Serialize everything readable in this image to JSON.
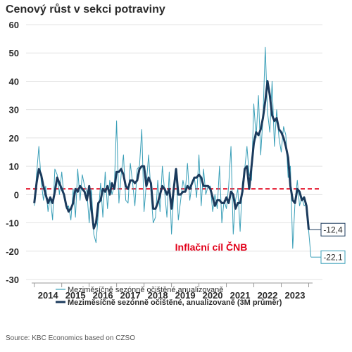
{
  "title": "Cenový růst v sekci potraviny",
  "source": "Source: KBC Economics based on CZSO",
  "chart_data": {
    "type": "line",
    "ylim": [
      -30,
      60
    ],
    "yticks": [
      -30,
      -20,
      -10,
      0,
      10,
      20,
      30,
      40,
      50,
      60
    ],
    "xlim": [
      2013.2,
      2024.0
    ],
    "year_labels": [
      "2014",
      "2015",
      "2016",
      "2017",
      "2018",
      "2019",
      "2020",
      "2021",
      "2022",
      "2023"
    ],
    "year_label_positions": [
      2014.0,
      2015.0,
      2016.0,
      2017.0,
      2018.0,
      2019.0,
      2020.0,
      2021.0,
      2022.0,
      2023.0
    ],
    "grid": true,
    "reference_line": {
      "label": "Inflační cíl ČNB",
      "value": 2,
      "color": "#e2001a"
    },
    "series": [
      {
        "name": "Meziměsíčně sezónně očištěné,anualizovaně",
        "color": "#3a9fb8",
        "points": [
          [
            2013.5,
            -4
          ],
          [
            2013.583,
            7
          ],
          [
            2013.667,
            17
          ],
          [
            2013.75,
            5
          ],
          [
            2013.833,
            -2
          ],
          [
            2013.917,
            3
          ],
          [
            2014.0,
            -6
          ],
          [
            2014.083,
            -1
          ],
          [
            2014.167,
            -9
          ],
          [
            2014.25,
            9
          ],
          [
            2014.333,
            7
          ],
          [
            2014.417,
            0
          ],
          [
            2014.5,
            8
          ],
          [
            2014.583,
            -1
          ],
          [
            2014.667,
            -5
          ],
          [
            2014.75,
            -4
          ],
          [
            2014.833,
            -9
          ],
          [
            2014.917,
            2
          ],
          [
            2015.0,
            -8
          ],
          [
            2015.083,
            9
          ],
          [
            2015.167,
            -2
          ],
          [
            2015.25,
            7
          ],
          [
            2015.333,
            3
          ],
          [
            2015.417,
            1
          ],
          [
            2015.5,
            -10
          ],
          [
            2015.583,
            2
          ],
          [
            2015.667,
            -14
          ],
          [
            2015.75,
            -17
          ],
          [
            2015.833,
            -7
          ],
          [
            2015.917,
            4
          ],
          [
            2016.0,
            -8
          ],
          [
            2016.083,
            8
          ],
          [
            2016.167,
            -5
          ],
          [
            2016.25,
            5
          ],
          [
            2016.333,
            0
          ],
          [
            2016.417,
            3
          ],
          [
            2016.5,
            26
          ],
          [
            2016.583,
            -3
          ],
          [
            2016.667,
            7
          ],
          [
            2016.75,
            14
          ],
          [
            2016.833,
            -2
          ],
          [
            2016.917,
            -3
          ],
          [
            2017.0,
            11
          ],
          [
            2017.083,
            4
          ],
          [
            2017.167,
            -4
          ],
          [
            2017.25,
            9
          ],
          [
            2017.333,
            10
          ],
          [
            2017.417,
            23
          ],
          [
            2017.5,
            -6
          ],
          [
            2017.583,
            4
          ],
          [
            2017.667,
            14
          ],
          [
            2017.75,
            1
          ],
          [
            2017.833,
            -10
          ],
          [
            2017.917,
            -8
          ],
          [
            2018.0,
            5
          ],
          [
            2018.083,
            -6
          ],
          [
            2018.167,
            10
          ],
          [
            2018.25,
            1
          ],
          [
            2018.333,
            -8
          ],
          [
            2018.417,
            8
          ],
          [
            2018.5,
            -14
          ],
          [
            2018.583,
            0
          ],
          [
            2018.667,
            8
          ],
          [
            2018.75,
            -9
          ],
          [
            2018.833,
            -2
          ],
          [
            2018.917,
            5
          ],
          [
            2019.0,
            1
          ],
          [
            2019.083,
            11
          ],
          [
            2019.167,
            -2
          ],
          [
            2019.25,
            4
          ],
          [
            2019.333,
            6
          ],
          [
            2019.417,
            -1
          ],
          [
            2019.5,
            14
          ],
          [
            2019.583,
            -4
          ],
          [
            2019.667,
            9
          ],
          [
            2019.75,
            0
          ],
          [
            2019.833,
            3
          ],
          [
            2019.917,
            3
          ],
          [
            2020.0,
            -6
          ],
          [
            2020.083,
            0
          ],
          [
            2020.167,
            -5
          ],
          [
            2020.25,
            10
          ],
          [
            2020.333,
            -10
          ],
          [
            2020.417,
            -2
          ],
          [
            2020.5,
            -5
          ],
          [
            2020.583,
            3
          ],
          [
            2020.667,
            17
          ],
          [
            2020.75,
            -14
          ],
          [
            2020.833,
            -2
          ],
          [
            2020.917,
            2
          ],
          [
            2021.0,
            -13
          ],
          [
            2021.083,
            4
          ],
          [
            2021.167,
            9
          ],
          [
            2021.25,
            17
          ],
          [
            2021.333,
            7
          ],
          [
            2021.417,
            5
          ],
          [
            2021.5,
            32
          ],
          [
            2021.583,
            20
          ],
          [
            2021.667,
            35
          ],
          [
            2021.75,
            14
          ],
          [
            2021.833,
            27
          ],
          [
            2021.917,
            52
          ],
          [
            2022.0,
            29
          ],
          [
            2022.083,
            22
          ],
          [
            2022.167,
            40
          ],
          [
            2022.25,
            17
          ],
          [
            2022.333,
            30
          ],
          [
            2022.417,
            20
          ],
          [
            2022.5,
            15
          ],
          [
            2022.583,
            24
          ],
          [
            2022.667,
            21
          ],
          [
            2022.75,
            6
          ],
          [
            2022.833,
            10
          ],
          [
            2022.917,
            -19
          ],
          [
            2023.0,
            -3
          ],
          [
            2023.083,
            5
          ],
          [
            2023.167,
            -4
          ],
          [
            2023.25,
            -1
          ],
          [
            2023.333,
            -4
          ],
          [
            2023.417,
            -3
          ],
          [
            2023.5,
            -13
          ],
          [
            2023.583,
            -22.1
          ]
        ]
      },
      {
        "name": "Meziměsíčně sezónně očištěné, anualizovaně (3M průměr)",
        "color": "#1b3a5c",
        "points": [
          [
            2013.5,
            -3
          ],
          [
            2013.583,
            4
          ],
          [
            2013.667,
            9
          ],
          [
            2013.75,
            7
          ],
          [
            2013.833,
            3
          ],
          [
            2013.917,
            0
          ],
          [
            2014.0,
            -3
          ],
          [
            2014.083,
            -1
          ],
          [
            2014.167,
            -3
          ],
          [
            2014.25,
            1
          ],
          [
            2014.333,
            6
          ],
          [
            2014.417,
            4
          ],
          [
            2014.5,
            2
          ],
          [
            2014.583,
            0
          ],
          [
            2014.667,
            -4
          ],
          [
            2014.75,
            -6
          ],
          [
            2014.833,
            -5
          ],
          [
            2014.917,
            -3
          ],
          [
            2015.0,
            2
          ],
          [
            2015.083,
            1
          ],
          [
            2015.167,
            3
          ],
          [
            2015.25,
            2
          ],
          [
            2015.333,
            1
          ],
          [
            2015.417,
            -2
          ],
          [
            2015.5,
            3
          ],
          [
            2015.583,
            -5
          ],
          [
            2015.667,
            -12
          ],
          [
            2015.75,
            -10
          ],
          [
            2015.833,
            -3
          ],
          [
            2015.917,
            -2
          ],
          [
            2016.0,
            2
          ],
          [
            2016.083,
            1
          ],
          [
            2016.167,
            3
          ],
          [
            2016.25,
            0
          ],
          [
            2016.333,
            4
          ],
          [
            2016.417,
            2
          ],
          [
            2016.5,
            8
          ],
          [
            2016.583,
            8
          ],
          [
            2016.667,
            9
          ],
          [
            2016.75,
            7
          ],
          [
            2016.833,
            3
          ],
          [
            2016.917,
            2
          ],
          [
            2017.0,
            5
          ],
          [
            2017.083,
            5
          ],
          [
            2017.167,
            4
          ],
          [
            2017.25,
            5
          ],
          [
            2017.333,
            9
          ],
          [
            2017.417,
            10
          ],
          [
            2017.5,
            10
          ],
          [
            2017.583,
            3
          ],
          [
            2017.667,
            6
          ],
          [
            2017.75,
            4
          ],
          [
            2017.833,
            -5
          ],
          [
            2017.917,
            -5
          ],
          [
            2018.0,
            -3
          ],
          [
            2018.083,
            0
          ],
          [
            2018.167,
            3
          ],
          [
            2018.25,
            2
          ],
          [
            2018.333,
            0
          ],
          [
            2018.417,
            2
          ],
          [
            2018.5,
            -5
          ],
          [
            2018.583,
            2
          ],
          [
            2018.667,
            9
          ],
          [
            2018.75,
            0
          ],
          [
            2018.833,
            0
          ],
          [
            2018.917,
            1
          ],
          [
            2019.0,
            1
          ],
          [
            2019.083,
            3
          ],
          [
            2019.167,
            2
          ],
          [
            2019.25,
            4
          ],
          [
            2019.333,
            6
          ],
          [
            2019.417,
            6
          ],
          [
            2019.5,
            7
          ],
          [
            2019.583,
            6
          ],
          [
            2019.667,
            3
          ],
          [
            2019.75,
            3
          ],
          [
            2019.833,
            3
          ],
          [
            2019.917,
            2
          ],
          [
            2020.0,
            -1
          ],
          [
            2020.083,
            -4
          ],
          [
            2020.167,
            -2
          ],
          [
            2020.25,
            -2
          ],
          [
            2020.333,
            -3
          ],
          [
            2020.417,
            -3
          ],
          [
            2020.5,
            -1
          ],
          [
            2020.583,
            -3
          ],
          [
            2020.667,
            1
          ],
          [
            2020.75,
            0
          ],
          [
            2020.833,
            -5
          ],
          [
            2020.917,
            -3
          ],
          [
            2021.0,
            -3
          ],
          [
            2021.083,
            1
          ],
          [
            2021.167,
            9
          ],
          [
            2021.25,
            10
          ],
          [
            2021.333,
            2
          ],
          [
            2021.417,
            10
          ],
          [
            2021.5,
            18
          ],
          [
            2021.583,
            22
          ],
          [
            2021.667,
            21
          ],
          [
            2021.75,
            23
          ],
          [
            2021.833,
            27
          ],
          [
            2021.917,
            33
          ],
          [
            2022.0,
            40
          ],
          [
            2022.083,
            35
          ],
          [
            2022.167,
            28
          ],
          [
            2022.25,
            26
          ],
          [
            2022.333,
            27
          ],
          [
            2022.417,
            23
          ],
          [
            2022.5,
            22
          ],
          [
            2022.583,
            20
          ],
          [
            2022.667,
            17
          ],
          [
            2022.75,
            13
          ],
          [
            2022.833,
            3
          ],
          [
            2022.917,
            -2
          ],
          [
            2023.0,
            -3
          ],
          [
            2023.083,
            2
          ],
          [
            2023.167,
            1
          ],
          [
            2023.25,
            -2
          ],
          [
            2023.333,
            -1
          ],
          [
            2023.417,
            -4
          ],
          [
            2023.5,
            -12.4
          ]
        ]
      }
    ],
    "end_labels": [
      {
        "series": 1,
        "text": "-12,4",
        "color": "#1b3a5c"
      },
      {
        "series": 0,
        "text": "-22,1",
        "color": "#3a9fb8"
      }
    ]
  }
}
